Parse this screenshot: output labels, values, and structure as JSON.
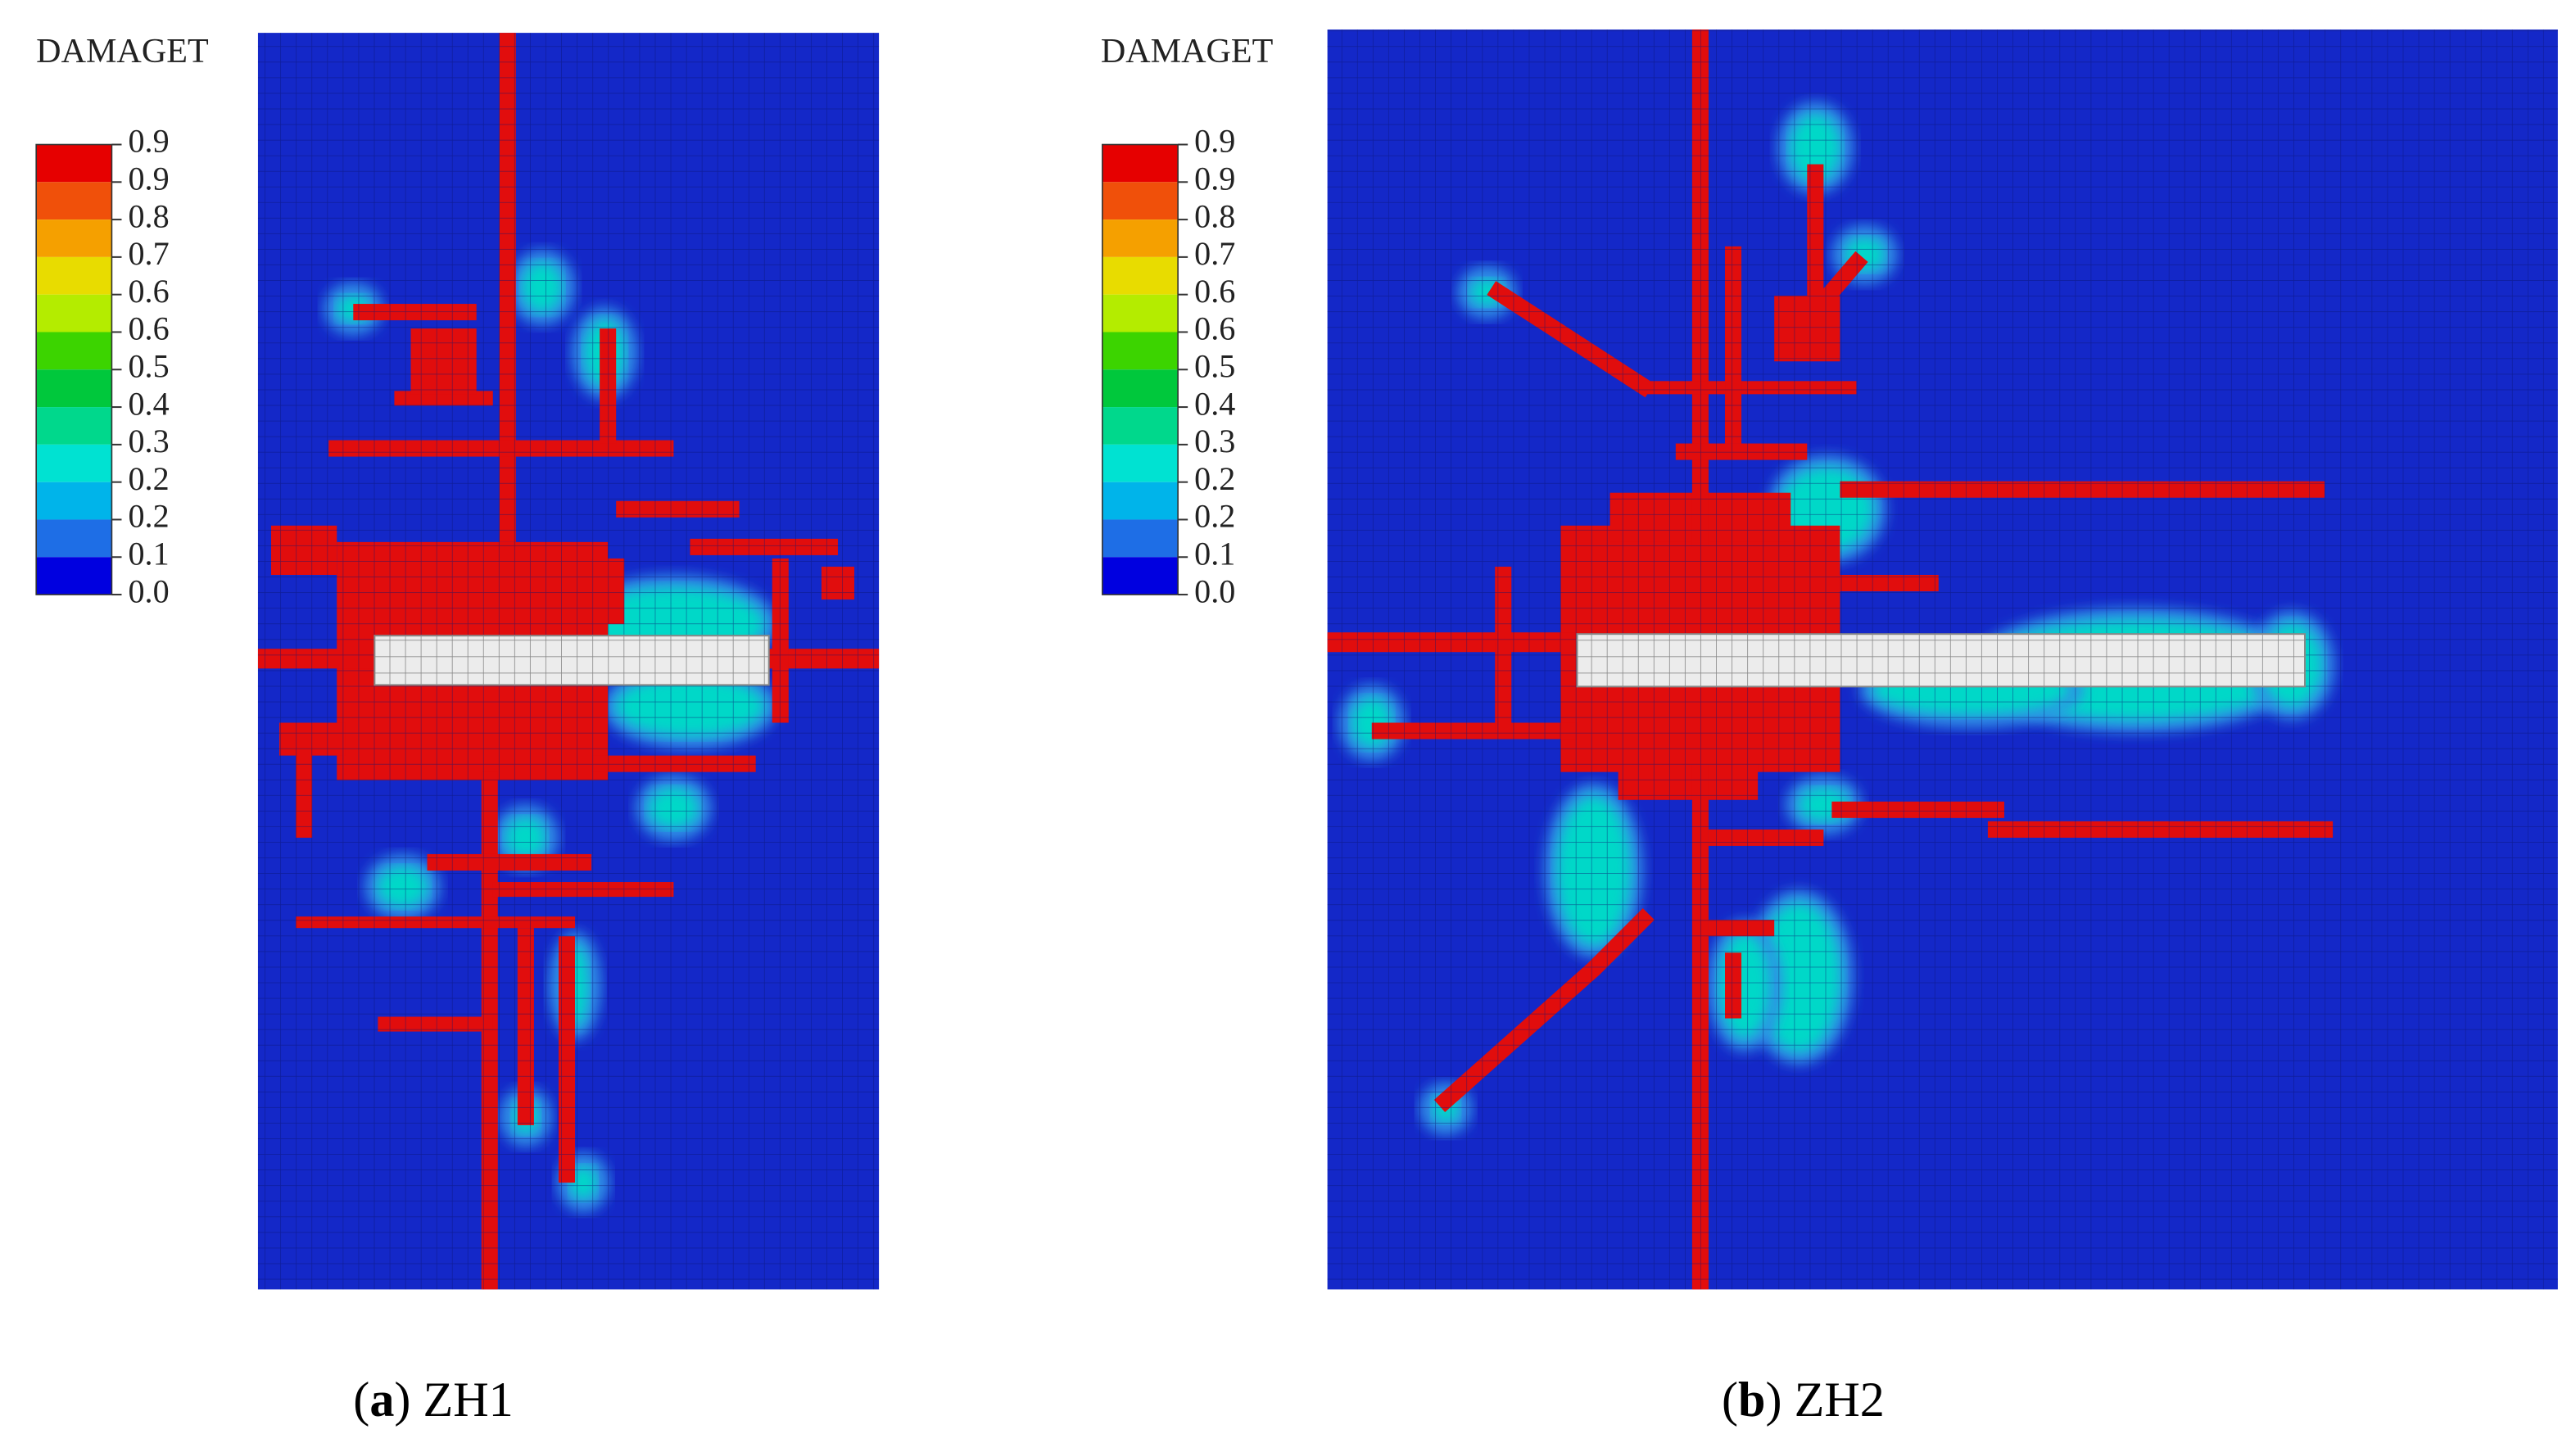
{
  "panels": [
    {
      "legend": {
        "title": "DAMAGET",
        "labels": [
          "0.9",
          "0.9",
          "0.8",
          "0.7",
          "0.6",
          "0.6",
          "0.5",
          "0.4",
          "0.3",
          "0.2",
          "0.2",
          "0.1",
          "0.0"
        ]
      },
      "caption": {
        "prefix": "(",
        "label": "a",
        "text": ") ZH1"
      }
    },
    {
      "legend": {
        "title": "DAMAGET",
        "labels": [
          "0.9",
          "0.9",
          "0.8",
          "0.7",
          "0.6",
          "0.6",
          "0.5",
          "0.4",
          "0.3",
          "0.2",
          "0.2",
          "0.1",
          "0.0"
        ]
      },
      "caption": {
        "prefix": "(",
        "label": "b",
        "text": ") ZH2"
      }
    }
  ]
}
